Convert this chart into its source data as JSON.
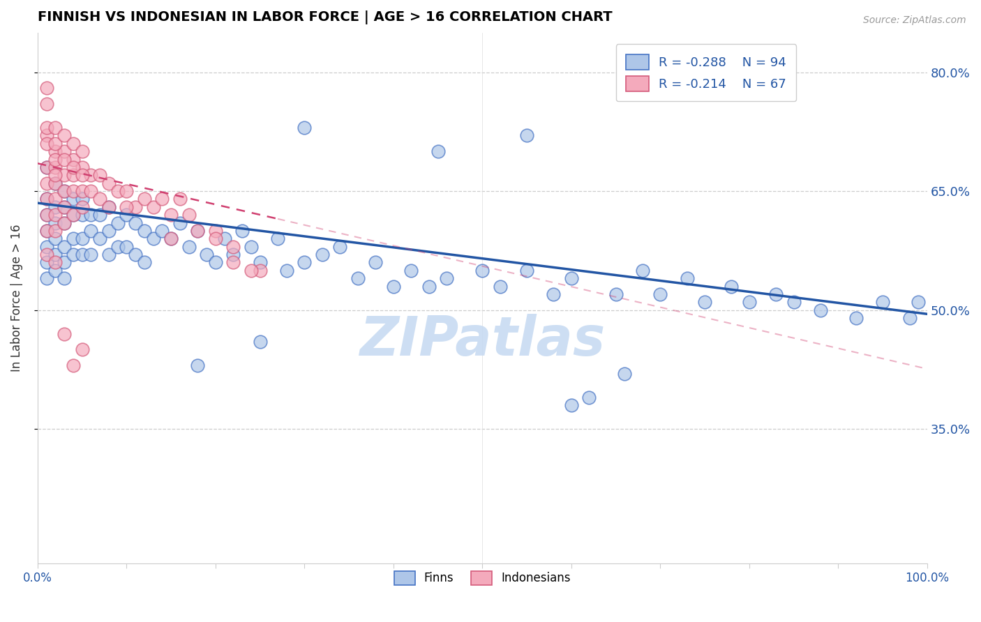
{
  "title": "FINNISH VS INDONESIAN IN LABOR FORCE | AGE > 16 CORRELATION CHART",
  "source_text": "Source: ZipAtlas.com",
  "ylabel": "In Labor Force | Age > 16",
  "xlim": [
    0.0,
    1.0
  ],
  "ylim": [
    0.18,
    0.85
  ],
  "yticks": [
    0.35,
    0.5,
    0.65,
    0.8
  ],
  "ytick_labels": [
    "35.0%",
    "50.0%",
    "65.0%",
    "80.0%"
  ],
  "xtick_vals": [
    0.0,
    0.1,
    0.2,
    0.3,
    0.4,
    0.5,
    0.6,
    0.7,
    0.8,
    0.9,
    1.0
  ],
  "xtick_labels": [
    "0.0%",
    "",
    "",
    "",
    "",
    "",
    "",
    "",
    "",
    "",
    "100.0%"
  ],
  "finn_color": "#aec6e8",
  "finn_edge_color": "#4472c4",
  "indo_color": "#f4aabc",
  "indo_edge_color": "#d45a7a",
  "finn_line_color": "#2255a4",
  "indo_line_color": "#d04070",
  "watermark": "ZIPatlas",
  "watermark_color": "#c5d9f1",
  "legend_R_finn": "-0.288",
  "legend_N_finn": "94",
  "legend_R_indo": "-0.214",
  "legend_N_indo": "67",
  "finn_x": [
    0.01,
    0.01,
    0.01,
    0.01,
    0.01,
    0.01,
    0.01,
    0.02,
    0.02,
    0.02,
    0.02,
    0.02,
    0.02,
    0.03,
    0.03,
    0.03,
    0.03,
    0.03,
    0.03,
    0.04,
    0.04,
    0.04,
    0.04,
    0.05,
    0.05,
    0.05,
    0.05,
    0.06,
    0.06,
    0.06,
    0.07,
    0.07,
    0.08,
    0.08,
    0.08,
    0.09,
    0.09,
    0.1,
    0.1,
    0.11,
    0.11,
    0.12,
    0.12,
    0.13,
    0.14,
    0.15,
    0.16,
    0.17,
    0.18,
    0.19,
    0.2,
    0.21,
    0.22,
    0.23,
    0.24,
    0.25,
    0.27,
    0.28,
    0.3,
    0.32,
    0.34,
    0.36,
    0.38,
    0.4,
    0.42,
    0.44,
    0.46,
    0.5,
    0.52,
    0.55,
    0.58,
    0.6,
    0.65,
    0.68,
    0.7,
    0.73,
    0.75,
    0.78,
    0.8,
    0.83,
    0.85,
    0.88,
    0.92,
    0.95,
    0.98,
    0.99,
    0.45,
    0.3,
    0.55,
    0.6,
    0.62,
    0.66,
    0.18,
    0.25
  ],
  "finn_y": [
    0.68,
    0.64,
    0.62,
    0.6,
    0.58,
    0.56,
    0.54,
    0.66,
    0.63,
    0.61,
    0.59,
    0.57,
    0.55,
    0.65,
    0.63,
    0.61,
    0.58,
    0.56,
    0.54,
    0.64,
    0.62,
    0.59,
    0.57,
    0.64,
    0.62,
    0.59,
    0.57,
    0.62,
    0.6,
    0.57,
    0.62,
    0.59,
    0.63,
    0.6,
    0.57,
    0.61,
    0.58,
    0.62,
    0.58,
    0.61,
    0.57,
    0.6,
    0.56,
    0.59,
    0.6,
    0.59,
    0.61,
    0.58,
    0.6,
    0.57,
    0.56,
    0.59,
    0.57,
    0.6,
    0.58,
    0.56,
    0.59,
    0.55,
    0.56,
    0.57,
    0.58,
    0.54,
    0.56,
    0.53,
    0.55,
    0.53,
    0.54,
    0.55,
    0.53,
    0.55,
    0.52,
    0.54,
    0.52,
    0.55,
    0.52,
    0.54,
    0.51,
    0.53,
    0.51,
    0.52,
    0.51,
    0.5,
    0.49,
    0.51,
    0.49,
    0.51,
    0.7,
    0.73,
    0.72,
    0.38,
    0.39,
    0.42,
    0.43,
    0.46
  ],
  "indo_x": [
    0.01,
    0.01,
    0.01,
    0.01,
    0.01,
    0.01,
    0.01,
    0.02,
    0.02,
    0.02,
    0.02,
    0.02,
    0.02,
    0.03,
    0.03,
    0.03,
    0.03,
    0.03,
    0.04,
    0.04,
    0.04,
    0.04,
    0.05,
    0.05,
    0.05,
    0.06,
    0.06,
    0.07,
    0.07,
    0.08,
    0.08,
    0.09,
    0.1,
    0.11,
    0.12,
    0.13,
    0.14,
    0.15,
    0.16,
    0.18,
    0.2,
    0.22,
    0.25,
    0.01,
    0.01,
    0.01,
    0.02,
    0.02,
    0.02,
    0.02,
    0.03,
    0.03,
    0.04,
    0.04,
    0.05,
    0.05,
    0.1,
    0.15,
    0.2,
    0.22,
    0.01,
    0.02,
    0.03,
    0.04,
    0.05,
    0.17,
    0.24
  ],
  "indo_y": [
    0.72,
    0.68,
    0.66,
    0.64,
    0.62,
    0.6,
    0.78,
    0.7,
    0.68,
    0.66,
    0.64,
    0.62,
    0.6,
    0.7,
    0.67,
    0.65,
    0.63,
    0.61,
    0.69,
    0.67,
    0.65,
    0.62,
    0.68,
    0.65,
    0.63,
    0.67,
    0.65,
    0.67,
    0.64,
    0.66,
    0.63,
    0.65,
    0.65,
    0.63,
    0.64,
    0.63,
    0.64,
    0.62,
    0.64,
    0.6,
    0.6,
    0.58,
    0.55,
    0.73,
    0.71,
    0.76,
    0.73,
    0.71,
    0.69,
    0.67,
    0.72,
    0.69,
    0.71,
    0.68,
    0.7,
    0.67,
    0.63,
    0.59,
    0.59,
    0.56,
    0.57,
    0.56,
    0.47,
    0.43,
    0.45,
    0.62,
    0.55
  ],
  "finn_line_x0": 0.0,
  "finn_line_y0": 0.635,
  "finn_line_x1": 1.0,
  "finn_line_y1": 0.495,
  "indo_line_x0": 0.0,
  "indo_line_y0": 0.685,
  "indo_line_x1": 0.27,
  "indo_line_y1": 0.615
}
